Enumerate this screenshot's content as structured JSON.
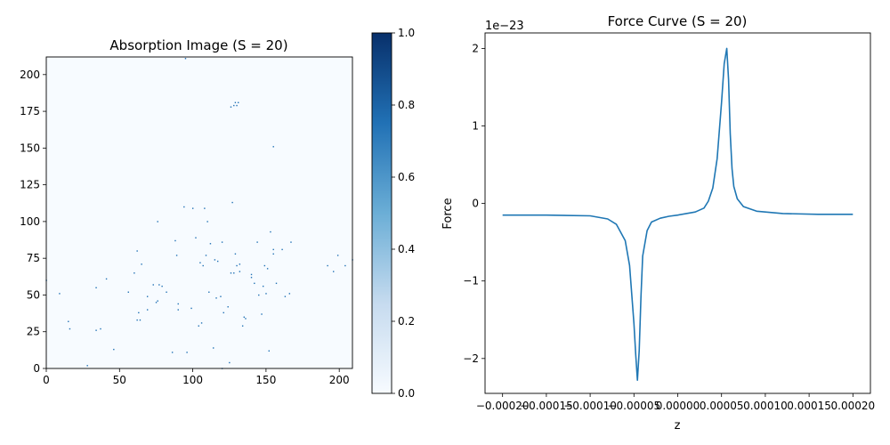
{
  "chart_data": [
    {
      "type": "heatmap",
      "title": "Absorption Image (S = 20)",
      "xlim": [
        0,
        209
      ],
      "ylim": [
        0,
        212
      ],
      "xticks": [
        0,
        50,
        100,
        150,
        200
      ],
      "yticks": [
        0,
        25,
        50,
        75,
        100,
        125,
        150,
        175,
        200
      ],
      "colormap": "Blues",
      "grid": false,
      "points": [
        [
          9,
          51
        ],
        [
          15,
          32
        ],
        [
          16,
          27
        ],
        [
          28,
          2
        ],
        [
          34,
          26
        ],
        [
          34,
          55
        ],
        [
          37,
          27
        ],
        [
          41,
          61
        ],
        [
          46,
          13
        ],
        [
          56,
          52
        ],
        [
          60,
          65
        ],
        [
          62,
          80
        ],
        [
          62,
          33
        ],
        [
          63,
          38
        ],
        [
          64,
          33
        ],
        [
          65,
          71
        ],
        [
          69,
          40
        ],
        [
          69,
          49
        ],
        [
          73,
          57
        ],
        [
          75,
          45
        ],
        [
          76,
          46
        ],
        [
          76,
          100
        ],
        [
          77,
          57
        ],
        [
          79,
          56
        ],
        [
          82,
          52
        ],
        [
          86,
          11
        ],
        [
          88,
          87
        ],
        [
          89,
          77
        ],
        [
          90,
          44
        ],
        [
          90,
          40
        ],
        [
          94,
          110
        ],
        [
          95,
          211
        ],
        [
          96,
          11
        ],
        [
          99,
          41
        ],
        [
          100,
          109
        ],
        [
          102,
          89
        ],
        [
          104,
          29
        ],
        [
          105,
          72
        ],
        [
          106,
          31
        ],
        [
          107,
          70
        ],
        [
          108,
          109
        ],
        [
          109,
          77
        ],
        [
          110,
          100
        ],
        [
          111,
          52
        ],
        [
          112,
          85
        ],
        [
          114,
          14
        ],
        [
          115,
          74
        ],
        [
          116,
          48
        ],
        [
          117,
          73
        ],
        [
          119,
          49
        ],
        [
          120,
          0
        ],
        [
          120,
          86
        ],
        [
          121,
          38
        ],
        [
          124,
          42
        ],
        [
          125,
          4
        ],
        [
          126,
          65
        ],
        [
          126,
          178
        ],
        [
          127,
          113
        ],
        [
          128,
          65
        ],
        [
          128,
          179
        ],
        [
          129,
          78
        ],
        [
          129,
          181
        ],
        [
          130,
          70
        ],
        [
          130,
          179
        ],
        [
          131,
          181
        ],
        [
          132,
          66
        ],
        [
          132,
          71
        ],
        [
          134,
          29
        ],
        [
          135,
          35
        ],
        [
          136,
          34
        ],
        [
          140,
          64
        ],
        [
          140,
          62
        ],
        [
          142,
          58
        ],
        [
          144,
          86
        ],
        [
          145,
          50
        ],
        [
          147,
          37
        ],
        [
          148,
          56
        ],
        [
          149,
          70
        ],
        [
          150,
          51
        ],
        [
          151,
          68
        ],
        [
          152,
          12
        ],
        [
          153,
          93
        ],
        [
          155,
          78
        ],
        [
          155,
          81
        ],
        [
          155,
          151
        ],
        [
          157,
          58
        ],
        [
          161,
          81
        ],
        [
          163,
          49
        ],
        [
          166,
          51
        ],
        [
          167,
          86
        ],
        [
          192,
          70
        ],
        [
          196,
          66
        ],
        [
          199,
          77
        ],
        [
          204,
          70
        ],
        [
          209,
          74
        ],
        [
          0,
          60
        ]
      ],
      "colorbar": {
        "min": 0.0,
        "max": 1.0,
        "ticks": [
          "0.0",
          "0.2",
          "0.4",
          "0.6",
          "0.8",
          "1.0"
        ]
      }
    },
    {
      "type": "line",
      "title": "Force Curve (S = 20)",
      "xlabel": "z",
      "ylabel": "Force",
      "offset_text": "1e−23",
      "xlim": [
        -0.00022,
        0.00022
      ],
      "ylim": [
        -2.45,
        2.2
      ],
      "xticks": [
        "−0.00020",
        "−0.00015",
        "−0.00010",
        "−0.00005",
        "0.00000",
        "0.00005",
        "0.00010",
        "0.00015",
        "0.00020"
      ],
      "yticks": [
        "−2",
        "−1",
        "0",
        "1",
        "2"
      ],
      "color": "#1f77b4",
      "grid": false,
      "x": [
        -0.0002,
        -0.00015,
        -0.0001,
        -8e-05,
        -7e-05,
        -6e-05,
        -5.5e-05,
        -5e-05,
        -4.8e-05,
        -4.6e-05,
        -4.4e-05,
        -4.2e-05,
        -4e-05,
        -3.5e-05,
        -3e-05,
        -2e-05,
        -1e-05,
        0.0,
        2e-05,
        3e-05,
        3.5e-05,
        4e-05,
        4.5e-05,
        5e-05,
        5.3e-05,
        5.6e-05,
        5.8e-05,
        6e-05,
        6.2e-05,
        6.4e-05,
        6.8e-05,
        7.5e-05,
        9e-05,
        0.00012,
        0.00016,
        0.0002
      ],
      "y": [
        -0.15,
        -0.15,
        -0.16,
        -0.2,
        -0.27,
        -0.48,
        -0.8,
        -1.55,
        -1.95,
        -2.28,
        -1.9,
        -1.2,
        -0.68,
        -0.35,
        -0.24,
        -0.19,
        -0.165,
        -0.15,
        -0.11,
        -0.06,
        0.03,
        0.2,
        0.58,
        1.3,
        1.8,
        2.0,
        1.6,
        0.9,
        0.45,
        0.22,
        0.06,
        -0.04,
        -0.1,
        -0.13,
        -0.14,
        -0.14
      ]
    }
  ]
}
